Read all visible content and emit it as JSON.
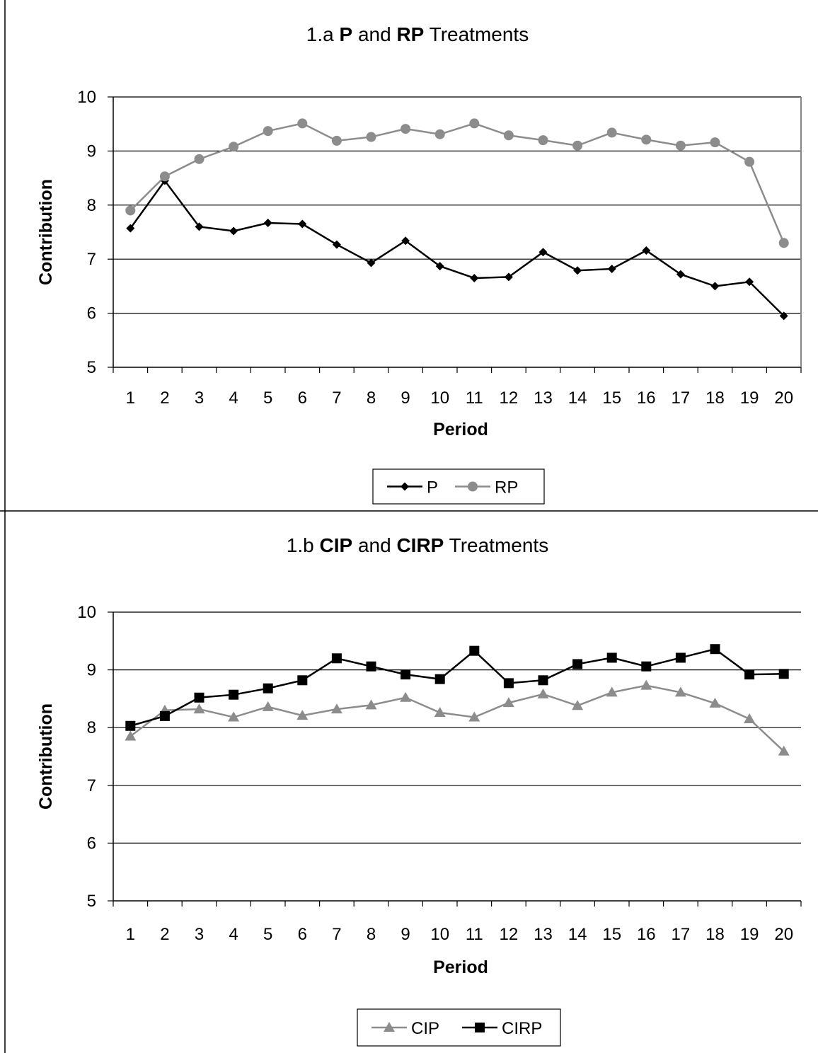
{
  "chart_data": [
    {
      "type": "line",
      "title_prefix": "1.a ",
      "title_parts": [
        {
          "text": "P",
          "bold": true
        },
        {
          "text": " and ",
          "bold": false
        },
        {
          "text": "RP",
          "bold": true
        },
        {
          "text": " Treatments",
          "bold": false
        }
      ],
      "xlabel": "Period",
      "ylabel": "Contribution",
      "ylim": [
        5,
        10
      ],
      "yticks": [
        5,
        6,
        7,
        8,
        9,
        10
      ],
      "categories": [
        1,
        2,
        3,
        4,
        5,
        6,
        7,
        8,
        9,
        10,
        11,
        12,
        13,
        14,
        15,
        16,
        17,
        18,
        19,
        20
      ],
      "grid": true,
      "legend_position": "bottom",
      "series": [
        {
          "name": "P",
          "color": "#000000",
          "marker": "diamond",
          "values": [
            7.57,
            8.45,
            7.6,
            7.52,
            7.67,
            7.65,
            7.27,
            6.93,
            7.34,
            6.87,
            6.65,
            6.67,
            7.13,
            6.79,
            6.82,
            7.16,
            6.72,
            6.5,
            6.58,
            5.95
          ]
        },
        {
          "name": "RP",
          "color": "#8c8c8c",
          "marker": "circle",
          "values": [
            7.9,
            8.53,
            8.85,
            9.08,
            9.37,
            9.51,
            9.19,
            9.26,
            9.41,
            9.31,
            9.51,
            9.29,
            9.2,
            9.1,
            9.34,
            9.21,
            9.1,
            9.16,
            8.8,
            7.3
          ]
        }
      ]
    },
    {
      "type": "line",
      "title_prefix": "1.b ",
      "title_parts": [
        {
          "text": "CIP",
          "bold": true
        },
        {
          "text": " and ",
          "bold": false
        },
        {
          "text": "CIRP",
          "bold": true
        },
        {
          "text": " Treatments",
          "bold": false
        }
      ],
      "xlabel": "Period",
      "ylabel": "Contribution",
      "ylim": [
        5,
        10
      ],
      "yticks": [
        5,
        6,
        7,
        8,
        9,
        10
      ],
      "categories": [
        1,
        2,
        3,
        4,
        5,
        6,
        7,
        8,
        9,
        10,
        11,
        12,
        13,
        14,
        15,
        16,
        17,
        18,
        19,
        20
      ],
      "grid": true,
      "legend_position": "bottom",
      "series": [
        {
          "name": "CIP",
          "color": "#8c8c8c",
          "marker": "triangle",
          "values": [
            7.85,
            8.3,
            8.32,
            8.18,
            8.36,
            8.21,
            8.32,
            8.39,
            8.52,
            8.26,
            8.18,
            8.43,
            8.58,
            8.38,
            8.61,
            8.73,
            8.61,
            8.42,
            8.15,
            7.59
          ]
        },
        {
          "name": "CIRP",
          "color": "#000000",
          "marker": "square",
          "values": [
            8.03,
            8.2,
            8.52,
            8.57,
            8.68,
            8.82,
            9.2,
            9.06,
            8.92,
            8.84,
            9.33,
            8.77,
            8.82,
            9.1,
            9.21,
            9.06,
            9.21,
            9.36,
            8.92,
            8.93
          ]
        }
      ]
    }
  ]
}
